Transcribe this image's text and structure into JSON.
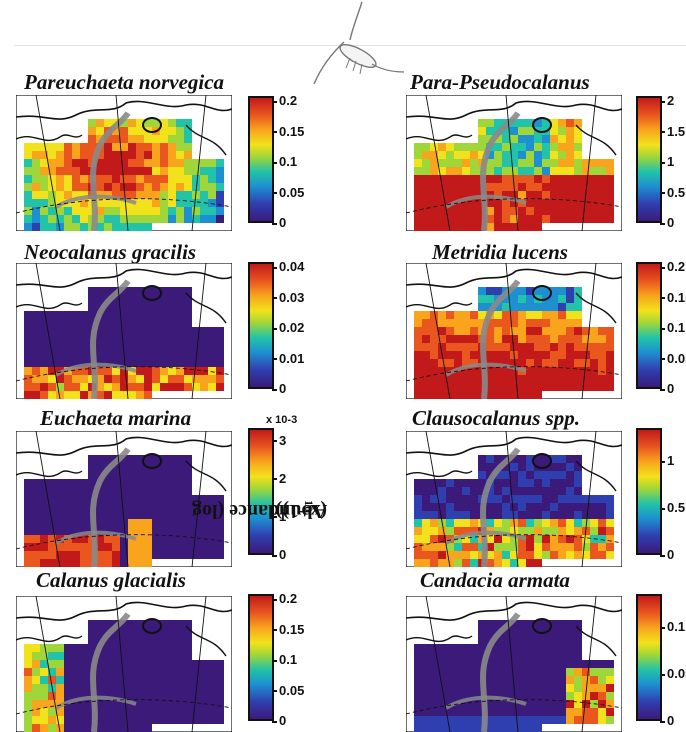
{
  "axis_label": "Abundance (log₁₀(x+1))",
  "axis_label_parts": {
    "main": "Abundance (log",
    "sub": "10",
    "tail": "(x+1))"
  },
  "colormap": [
    "#3b1a7a",
    "#2f3fb0",
    "#1e8fd0",
    "#22c3a8",
    "#9fd63a",
    "#f2e21b",
    "#f8a51d",
    "#e9571f",
    "#c21a1a"
  ],
  "land_color": "#ffffff",
  "outline_color": "#111111",
  "ridge_color": "#8a8a8a",
  "panels": [
    {
      "title": "Pareuchaeta norvegica",
      "ticks": [
        "0.2",
        "0.15",
        "0.1",
        "0.05",
        "0"
      ],
      "exponent": "",
      "pattern": "high-center"
    },
    {
      "title": "Para-Pseudocalanus",
      "ticks": [
        "2",
        "1.5",
        "1",
        "0.5",
        "0"
      ],
      "exponent": "",
      "pattern": "high-shelves"
    },
    {
      "title": "Neocalanus gracilis",
      "ticks": [
        "0.04",
        "0.03",
        "0.02",
        "0.01",
        "0"
      ],
      "exponent": "",
      "pattern": "south-band"
    },
    {
      "title": "Metridia lucens",
      "ticks": [
        "0.2",
        "0.15",
        "0.1",
        "0.05",
        "0"
      ],
      "exponent": "",
      "pattern": "widespread"
    },
    {
      "title": "Euchaeta marina",
      "ticks": [
        "3",
        "2",
        "1",
        "0"
      ],
      "exponent": "x 10-3",
      "pattern": "south-west"
    },
    {
      "title": "Clausocalanus spp.",
      "ticks": [
        "1",
        "0.5",
        "0"
      ],
      "exponent": "",
      "pattern": "south-mixed"
    },
    {
      "title": "Calanus glacialis",
      "ticks": [
        "0.2",
        "0.15",
        "0.1",
        "0.05",
        "0"
      ],
      "exponent": "",
      "pattern": "north-west"
    },
    {
      "title": "Candacia armata",
      "ticks": [
        "0.1",
        "0.05",
        "0"
      ],
      "exponent": "",
      "pattern": "east-edge"
    }
  ]
}
